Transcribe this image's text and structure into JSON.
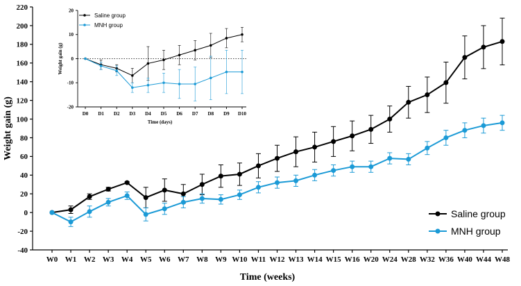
{
  "chart_data": [
    {
      "name": "main",
      "type": "line",
      "ylabel": "Weight gain (g)",
      "xlabel": "Time (weeks)",
      "ylim": [
        -40,
        220
      ],
      "yticks": [
        -40,
        -20,
        0,
        20,
        40,
        60,
        80,
        100,
        120,
        140,
        160,
        180,
        200,
        220
      ],
      "categories": [
        "W0",
        "W1",
        "W2",
        "W3",
        "W4",
        "W5",
        "W6",
        "W7",
        "W8",
        "W9",
        "W10",
        "W11",
        "W12",
        "W13",
        "W14",
        "W15",
        "W16",
        "W20",
        "W24",
        "W28",
        "W32",
        "W36",
        "W40",
        "W44",
        "W48"
      ],
      "legend_position": "bottom-right",
      "series": [
        {
          "name": "Saline group",
          "color": "#000000",
          "values": [
            0,
            3,
            17,
            25,
            32,
            16,
            24,
            20,
            30,
            39,
            41,
            50,
            58,
            65,
            70,
            76,
            82,
            89,
            100,
            118,
            126,
            139,
            166,
            177,
            183
          ],
          "errors": [
            0,
            4,
            3,
            2,
            1,
            11,
            12,
            10,
            11,
            12,
            12,
            13,
            14,
            16,
            16,
            16,
            16,
            15,
            14,
            17,
            19,
            22,
            23,
            23,
            25
          ]
        },
        {
          "name": "MNH group",
          "color": "#1b9ad6",
          "values": [
            0,
            -10,
            1,
            11,
            18,
            -2,
            4,
            11,
            15,
            14,
            19,
            27,
            32,
            34,
            40,
            45,
            49,
            49,
            58,
            57,
            69,
            80,
            88,
            93,
            96
          ],
          "errors": [
            0,
            5,
            6,
            4,
            4,
            7,
            6,
            6,
            5,
            5,
            5,
            6,
            6,
            6,
            6,
            6,
            6,
            6,
            6,
            6,
            7,
            8,
            8,
            8,
            8
          ]
        }
      ]
    },
    {
      "name": "inset",
      "type": "line",
      "ylabel": "Weight gain (g)",
      "xlabel": "Time (days)",
      "ylim": [
        -20,
        20
      ],
      "yticks": [
        -20,
        -10,
        0,
        10,
        20
      ],
      "categories": [
        "D0",
        "D1",
        "D2",
        "D3",
        "D4",
        "D5",
        "D6",
        "D7",
        "D8",
        "D9",
        "D10"
      ],
      "reference_line": 0,
      "legend_position": "top-left",
      "series": [
        {
          "name": "Saline group",
          "color": "#000000",
          "values": [
            0,
            -2.5,
            -4,
            -7,
            -2,
            -0.5,
            1.5,
            3.5,
            5.5,
            8.5,
            10
          ],
          "errors": [
            0,
            2,
            1.5,
            3,
            7,
            4,
            4,
            4,
            5,
            4,
            3
          ]
        },
        {
          "name": "MNH group",
          "color": "#1b9ad6",
          "values": [
            0,
            -3,
            -5,
            -12,
            -11,
            -10,
            -10.5,
            -10.5,
            -8,
            -5.5,
            -5.5
          ],
          "errors": [
            0,
            1.5,
            2,
            2,
            3,
            4,
            6,
            7,
            9,
            9,
            9
          ]
        }
      ]
    }
  ]
}
